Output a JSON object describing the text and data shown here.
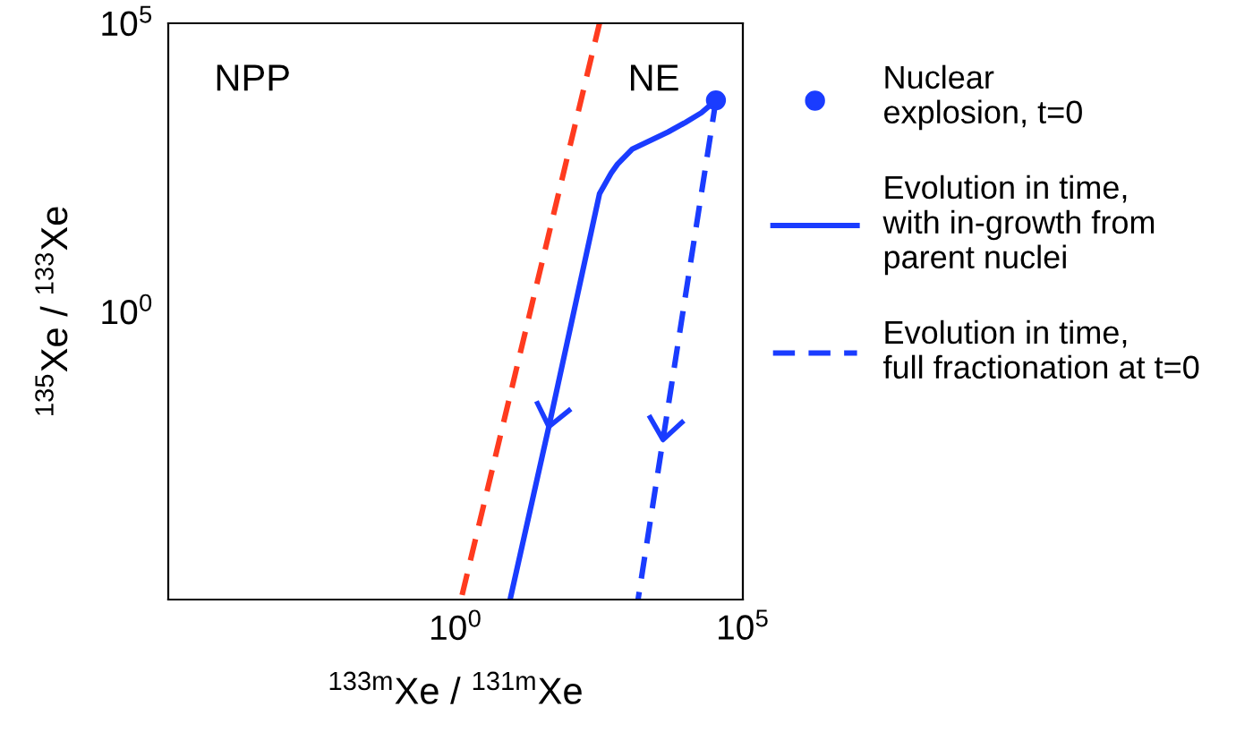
{
  "chart_data": {
    "type": "line",
    "xlabel": "$^{133m}$Xe / $^{131m}$Xe",
    "ylabel": "$^{135}$Xe / $^{133}$Xe",
    "log": "xy",
    "xlim": [
      1e-05,
      100000.0
    ],
    "ylim": [
      1e-05,
      100000.0
    ],
    "xticks": [
      {
        "value": 1,
        "label": "10$^{0}$"
      },
      {
        "value": 100000,
        "label": "10$^{5}$"
      }
    ],
    "yticks": [
      {
        "value": 1,
        "label": "10$^{0}$"
      },
      {
        "value": 100000,
        "label": "10$^{5}$"
      }
    ],
    "grid": false,
    "legend": "right",
    "annotations": [
      "NPP",
      "NE"
    ],
    "series": [
      {
        "color": "#ff3b1f",
        "line_style": "dashed",
        "x": [
          1.3,
          320
        ],
        "values": [
          1.2e-05,
          100000.0
        ]
      },
      {
        "name": "Evolution in time,\nwith in-growth from\nparent nuclei",
        "color": "#1a3cff",
        "line_style": "solid",
        "x": [
          34000,
          19000,
          10000,
          5000,
          2500,
          1200,
          660,
          510,
          320,
          42,
          8.9
        ],
        "values": [
          4600,
          2800,
          1900,
          1300,
          930,
          660,
          360,
          250,
          110,
          0.01,
          1e-05
        ]
      },
      {
        "name": "Evolution in time,\nfull fractionation at t=0",
        "color": "#1a3cff",
        "line_style": "dashed",
        "x": [
          34000,
          1500
        ],
        "values": [
          4600,
          1e-05
        ]
      },
      {
        "type": "scatter",
        "name": "Nuclear\nexplosion, t=0",
        "color": "#1a3cff",
        "marker": "circle",
        "x": [
          34000
        ],
        "values": [
          4600
        ]
      }
    ]
  }
}
